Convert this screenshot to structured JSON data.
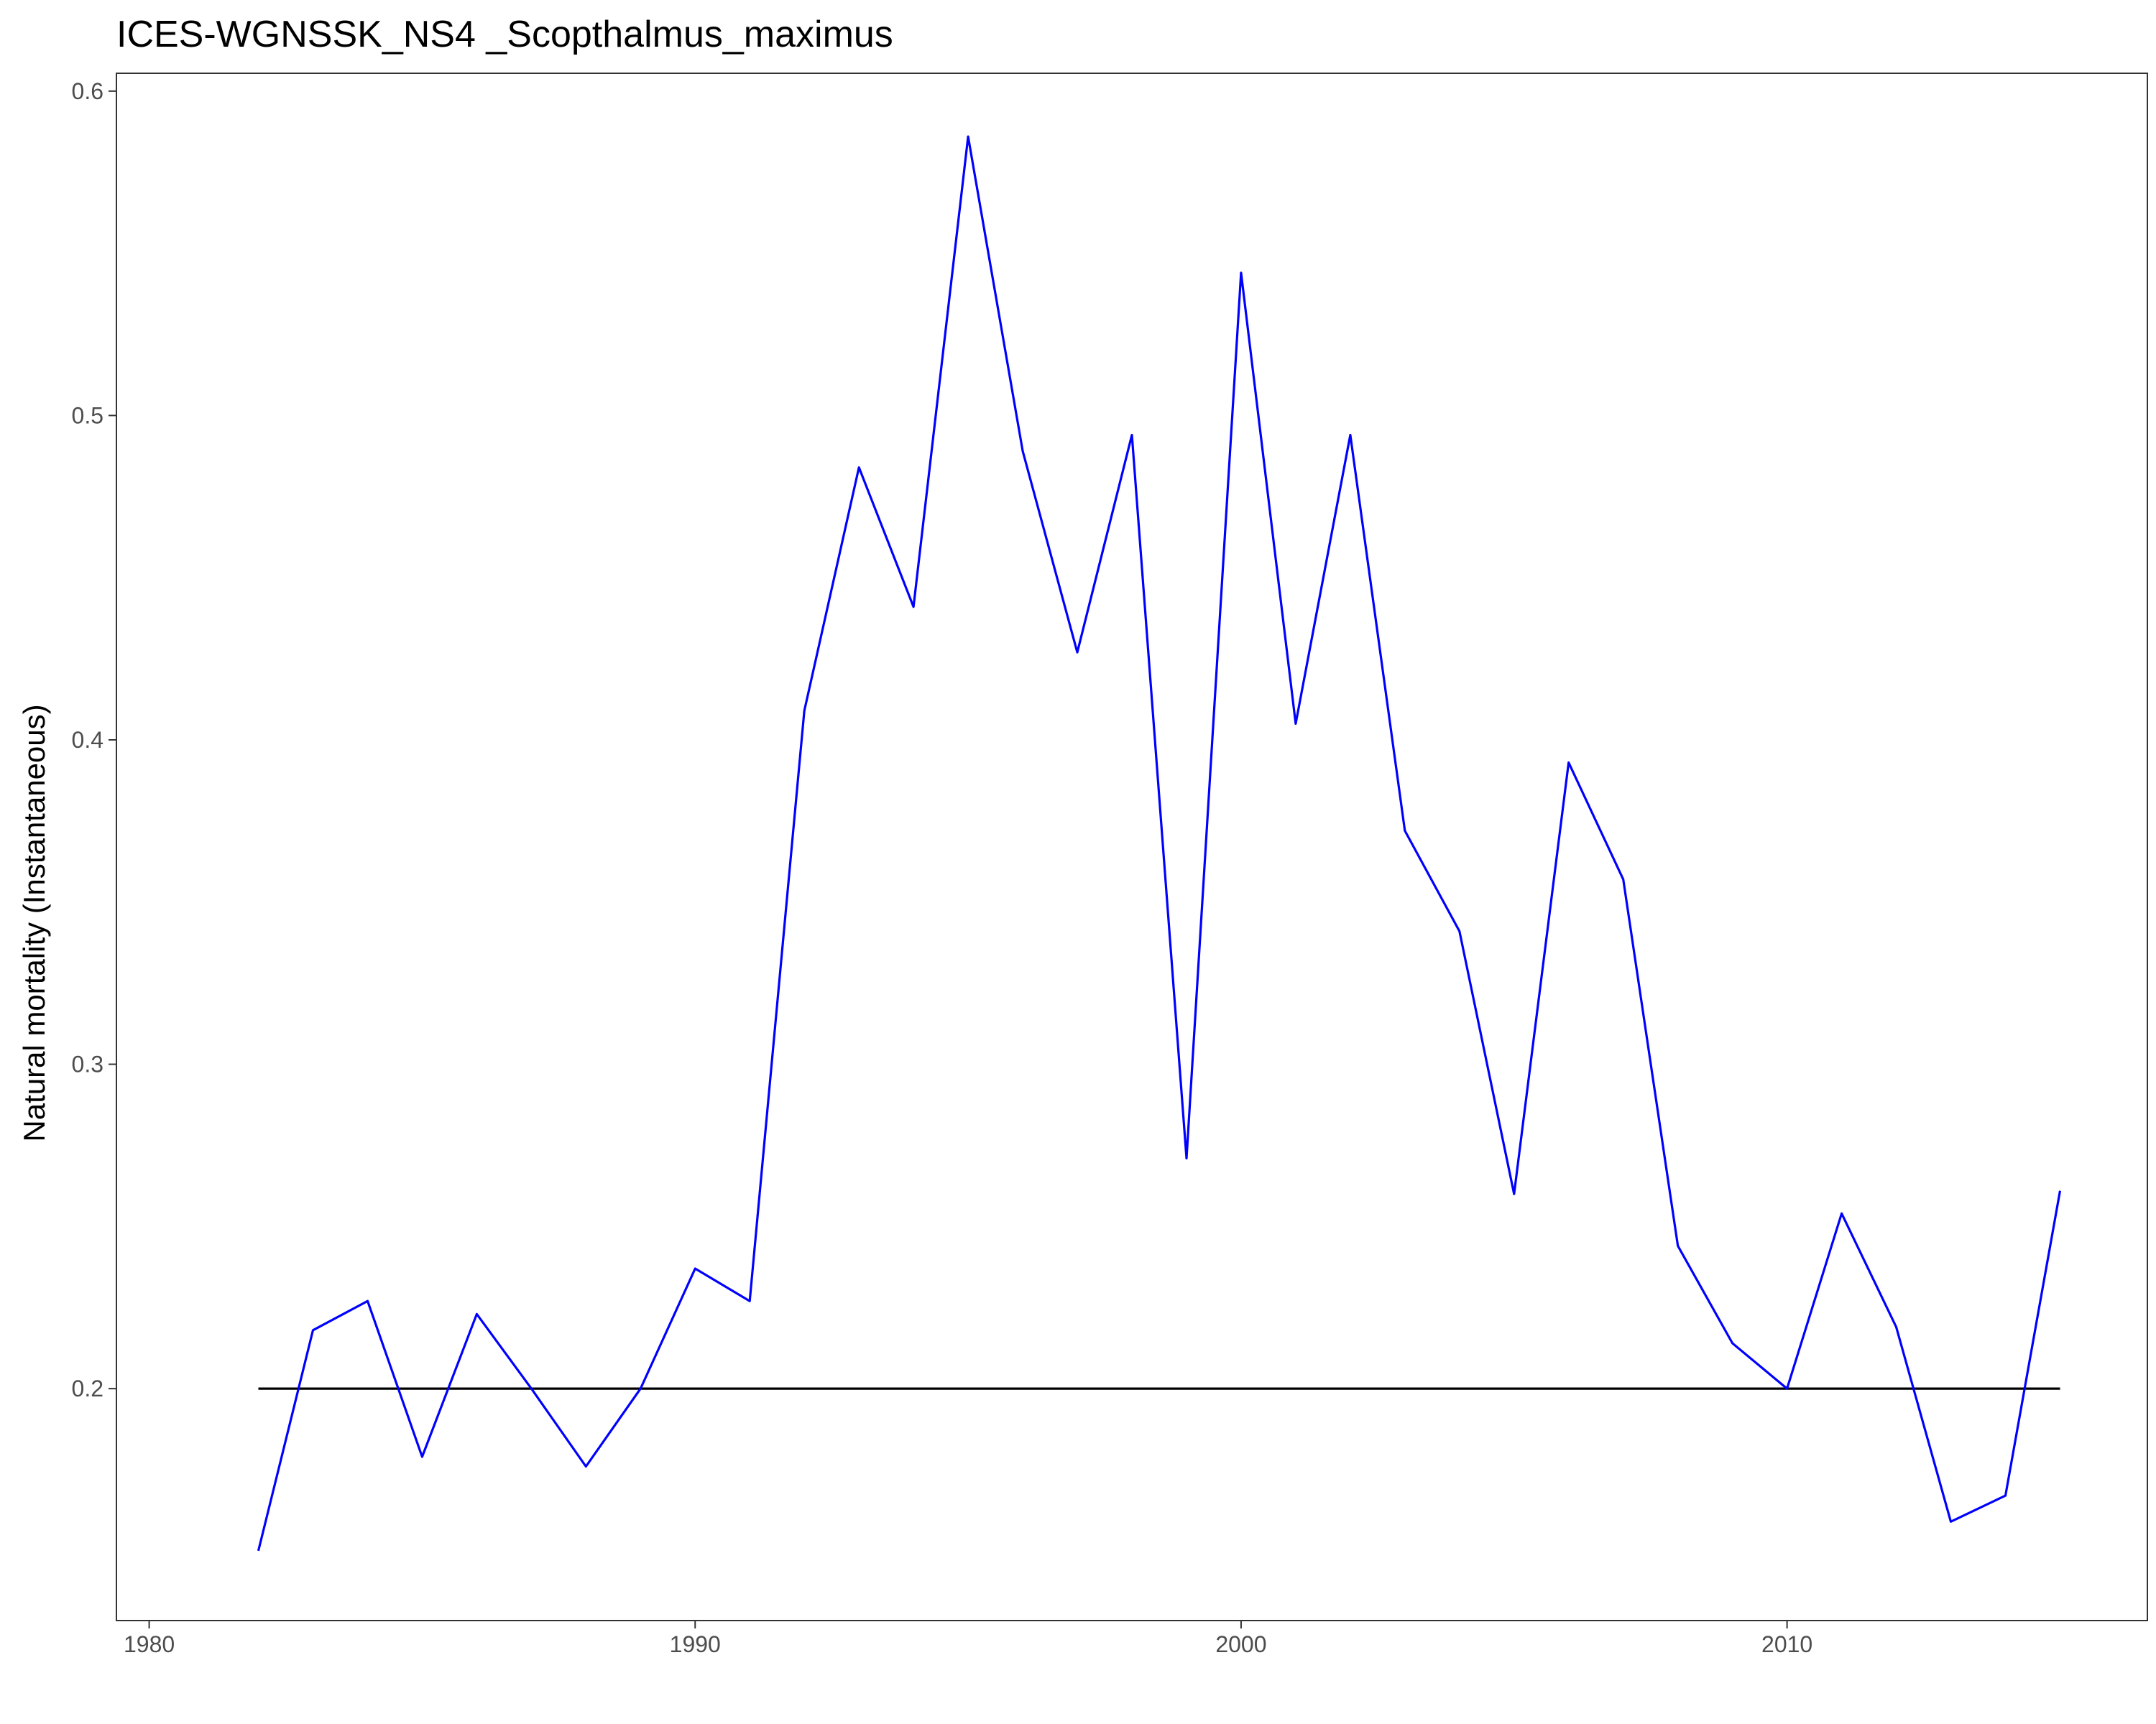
{
  "chart_data": {
    "type": "line",
    "title": "ICES-WGNSSK_NS4 _Scopthalmus_maximus",
    "xlabel": "",
    "ylabel": "Natural mortality (Instantaneous)",
    "xlim": [
      1979.4,
      2016.6
    ],
    "ylim": [
      0.1285,
      0.6055
    ],
    "x_ticks": [
      1980,
      1990,
      2000,
      2010
    ],
    "y_ticks": [
      0.2,
      0.3,
      0.4,
      0.5,
      0.6
    ],
    "x_tick_labels": [
      "1980",
      "1990",
      "2000",
      "2010"
    ],
    "y_tick_labels": [
      "0.2",
      "0.3",
      "0.4",
      "0.5",
      "0.6"
    ],
    "grid": false,
    "series": [
      {
        "color": "#0000ff",
        "x": [
          1982,
          1983,
          1984,
          1985,
          1986,
          1987,
          1988,
          1989,
          1990,
          1991,
          1992,
          1993,
          1994,
          1995,
          1996,
          1997,
          1998,
          1999,
          2000,
          2001,
          2002,
          2003,
          2004,
          2005,
          2006,
          2007,
          2008,
          2009,
          2010,
          2011,
          2012,
          2013,
          2014,
          2015
        ],
        "y": [
          0.15,
          0.218,
          0.227,
          0.179,
          0.223,
          0.2,
          0.176,
          0.2,
          0.237,
          0.227,
          0.409,
          0.484,
          0.441,
          0.586,
          0.489,
          0.427,
          0.494,
          0.271,
          0.544,
          0.405,
          0.494,
          0.372,
          0.341,
          0.26,
          0.393,
          0.357,
          0.244,
          0.214,
          0.2,
          0.254,
          0.219,
          0.159,
          0.167,
          0.261
        ]
      },
      {
        "color": "#000000",
        "x": [
          1982,
          2015
        ],
        "y": [
          0.2,
          0.2
        ]
      }
    ]
  }
}
